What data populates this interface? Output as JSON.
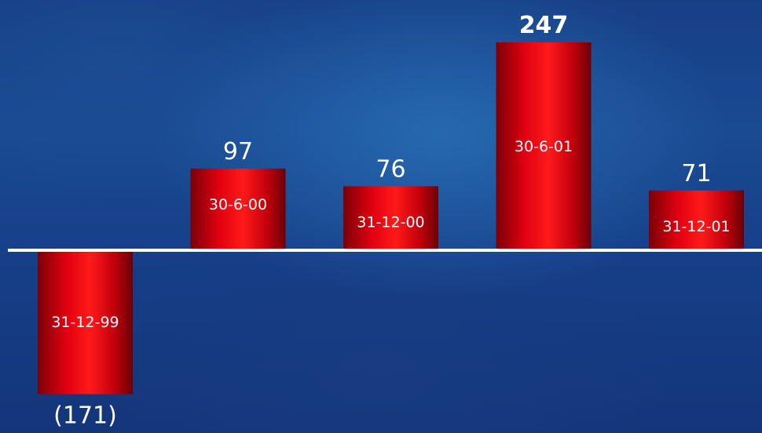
{
  "chart_data": {
    "type": "bar",
    "categories": [
      "31-12-99",
      "30-6-00",
      "31-12-00",
      "30-6-01",
      "31-12-01"
    ],
    "values": [
      -171,
      97,
      76,
      247,
      71
    ],
    "value_labels": [
      "(171)",
      "97",
      "76",
      "247",
      "71"
    ],
    "title": "",
    "xlabel": "",
    "ylabel": "",
    "ylim": [
      -171,
      247
    ],
    "grid": false,
    "bar_color": "#e8000a",
    "axis_color": "#ffffff"
  }
}
